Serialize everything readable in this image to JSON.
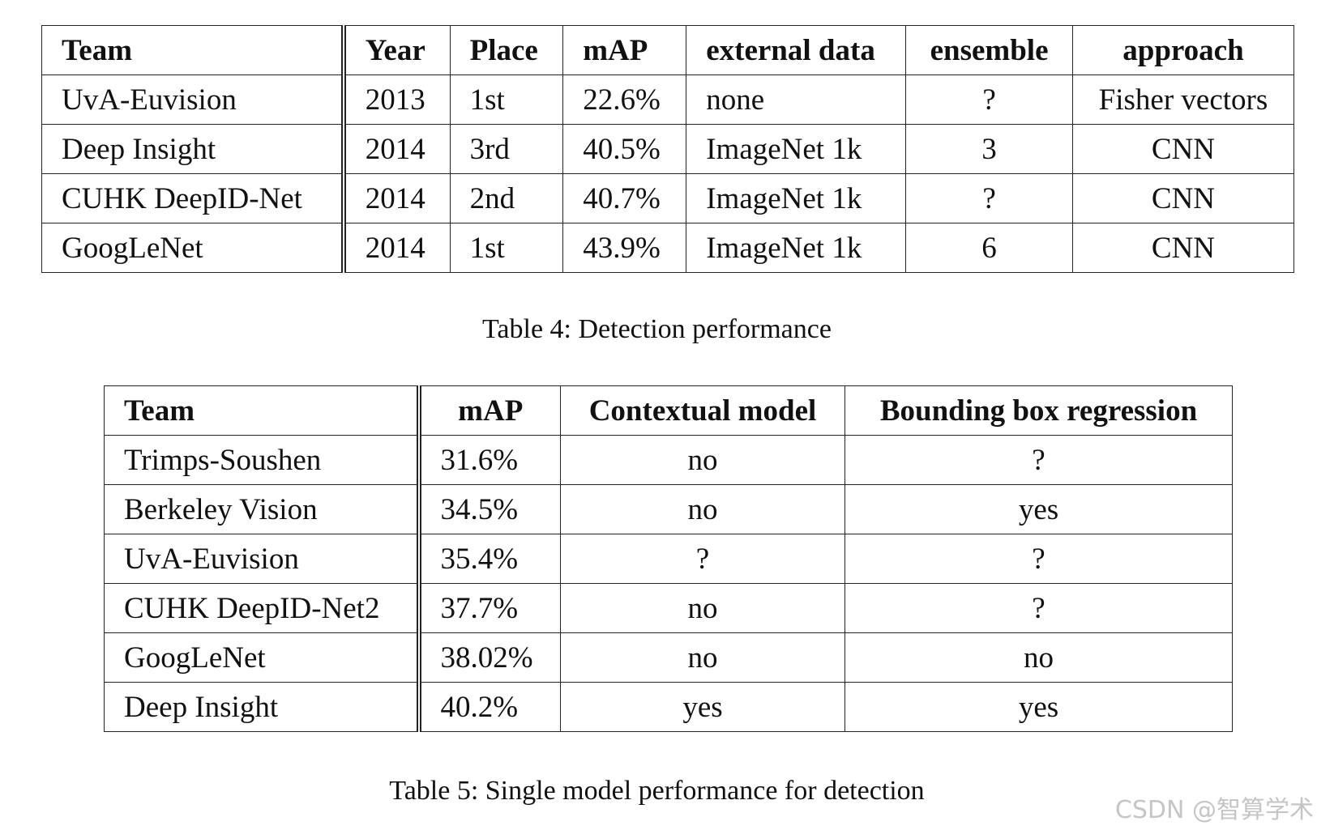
{
  "table4": {
    "headers": [
      "Team",
      "Year",
      "Place",
      "mAP",
      "external data",
      "ensemble",
      "approach"
    ],
    "rows": [
      [
        "UvA-Euvision",
        "2013",
        "1st",
        "22.6%",
        "none",
        "?",
        "Fisher vectors"
      ],
      [
        "Deep Insight",
        "2014",
        "3rd",
        "40.5%",
        "ImageNet 1k",
        "3",
        "CNN"
      ],
      [
        "CUHK DeepID-Net",
        "2014",
        "2nd",
        "40.7%",
        "ImageNet 1k",
        "?",
        "CNN"
      ],
      [
        "GoogLeNet",
        "2014",
        "1st",
        "43.9%",
        "ImageNet 1k",
        "6",
        "CNN"
      ]
    ],
    "caption": "Table 4: Detection performance"
  },
  "table5": {
    "headers": [
      "Team",
      "mAP",
      "Contextual model",
      "Bounding box regression"
    ],
    "rows": [
      [
        "Trimps-Soushen",
        "31.6%",
        "no",
        "?"
      ],
      [
        "Berkeley Vision",
        "34.5%",
        "no",
        "yes"
      ],
      [
        "UvA-Euvision",
        "35.4%",
        "?",
        "?"
      ],
      [
        "CUHK DeepID-Net2",
        "37.7%",
        "no",
        "?"
      ],
      [
        "GoogLeNet",
        "38.02%",
        "no",
        "no"
      ],
      [
        "Deep Insight",
        "40.2%",
        "yes",
        "yes"
      ]
    ],
    "caption": "Table 5: Single model performance for detection"
  },
  "watermark": "CSDN @智算学术"
}
